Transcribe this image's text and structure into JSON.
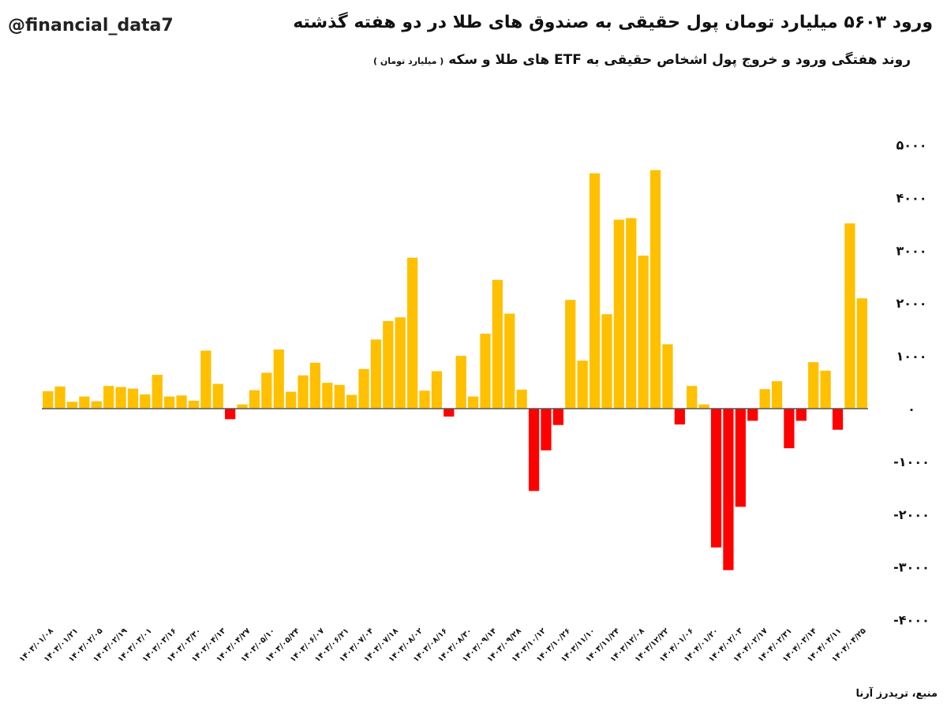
{
  "handle": "@financial_data7",
  "source": "منبع، تریدرز آرنا",
  "colors": {
    "positive": "#FFC000",
    "negative": "#FF0000",
    "zero_line": "#555555"
  },
  "chart_data": {
    "type": "bar",
    "title": "ورود ۵۶۰۳ میلیارد تومان پول حقیقی به صندوق های طلا در دو هفته گذشته",
    "subtitle": "روند هفتگی ورود و خروج پول اشخاص حقیقی به ETF های طلا و سکه",
    "unit": "( میلیارد تومان )",
    "ylim": [
      -4000,
      5000
    ],
    "yticks": [
      5000,
      4000,
      3000,
      2000,
      1000,
      0,
      -1000,
      -2000,
      -3000,
      -4000
    ],
    "ytick_labels": [
      "۵۰۰۰",
      "۴۰۰۰",
      "۳۰۰۰",
      "۲۰۰۰",
      "۱۰۰۰",
      "۰",
      "-۱۰۰۰",
      "-۲۰۰۰",
      "-۳۰۰۰",
      "-۴۰۰۰"
    ],
    "y_axis_position": "right",
    "grid": false,
    "tick_labels": [
      "۱۴۰۳/۰۱/۰۸",
      "۱۴۰۳/۰۱/۲۱",
      "۱۴۰۳/۰۲/۰۵",
      "۱۴۰۳/۰۲/۱۹",
      "۱۴۰۳/۰۳/۰۱",
      "۱۴۰۳/۰۳/۱۶",
      "۱۴۰۳/۰۳/۳۰",
      "۱۴۰۳/۰۴/۱۳",
      "۱۴۰۳/۰۴/۲۷",
      "۱۴۰۳/۰۵/۱۰",
      "۱۴۰۳/۰۵/۲۴",
      "۱۴۰۳/۰۶/۰۷",
      "۱۴۰۳/۰۶/۲۱",
      "۱۴۰۳/۰۷/۰۴",
      "۱۴۰۳/۰۷/۱۸",
      "۱۴۰۳/۰۸/۰۲",
      "۱۴۰۳/۰۸/۱۶",
      "۱۴۰۳/۰۸/۳۰",
      "۱۴۰۳/۰۹/۱۴",
      "۱۴۰۳/۰۹/۲۸",
      "۱۴۰۳/۱۰/۱۲",
      "۱۴۰۳/۱۰/۲۶",
      "۱۴۰۳/۱۱/۱۰",
      "۱۴۰۳/۱۱/۲۴",
      "۱۴۰۳/۱۲/۰۸",
      "۱۴۰۳/۱۲/۲۲",
      "۱۴۰۴/۰۱/۰۶",
      "۱۴۰۴/۰۱/۲۰",
      "۱۴۰۴/۰۲/۰۳",
      "۱۴۰۴/۰۲/۱۷",
      "۱۴۰۴/۰۲/۳۱",
      "۱۴۰۴/۰۳/۱۴",
      "۱۴۰۴/۰۴/۱۱",
      "۱۴۰۴/۰۴/۲۵"
    ],
    "values": [
      330,
      420,
      130,
      230,
      140,
      430,
      410,
      380,
      270,
      640,
      230,
      250,
      150,
      1100,
      470,
      -200,
      80,
      350,
      680,
      1120,
      320,
      630,
      870,
      490,
      450,
      260,
      750,
      1310,
      1660,
      1730,
      2860,
      340,
      710,
      -150,
      1000,
      230,
      1420,
      2440,
      1800,
      360,
      -1560,
      -790,
      -310,
      2060,
      910,
      4460,
      1790,
      3580,
      3610,
      2900,
      4520,
      1220,
      -300,
      430,
      80,
      -2630,
      -3060,
      -1860,
      -230,
      370,
      520,
      -750,
      -230,
      880,
      720,
      -400,
      3510,
      2090
    ]
  }
}
